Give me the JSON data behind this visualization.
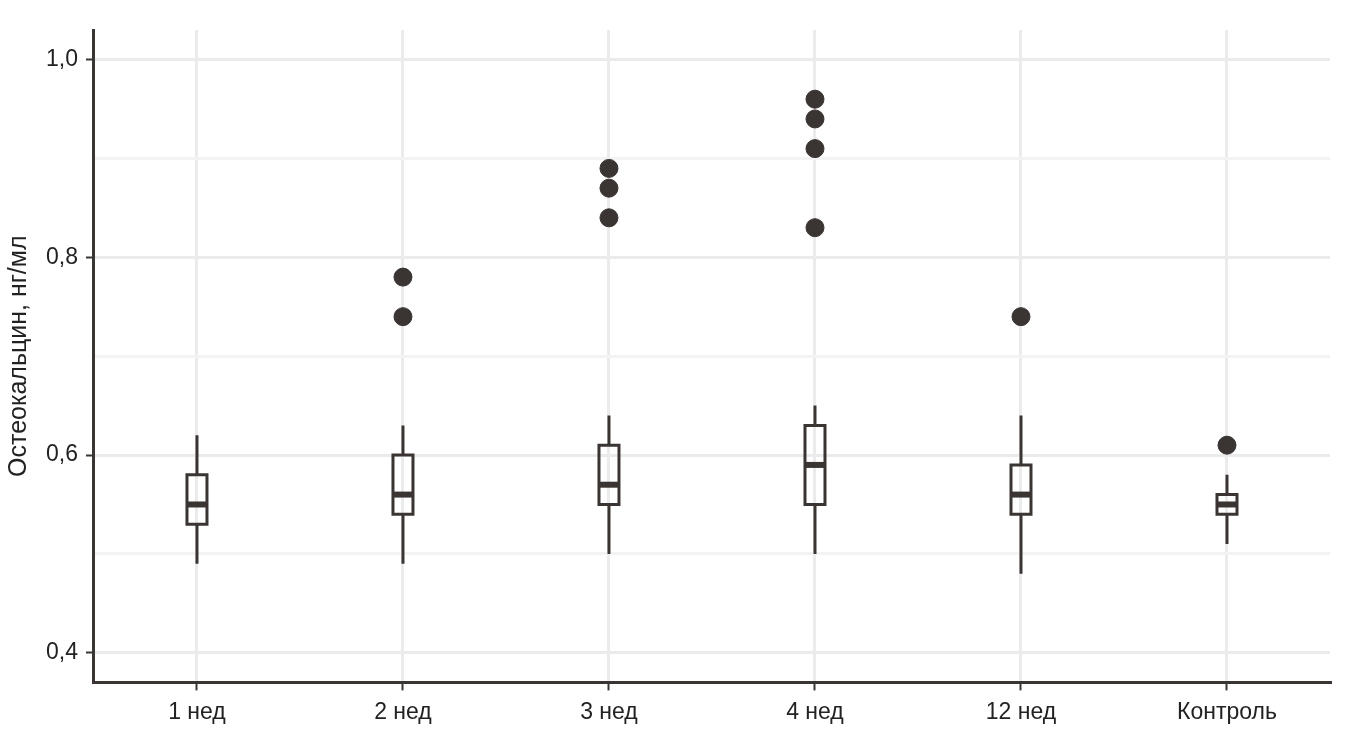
{
  "chart_data": {
    "type": "box",
    "ylabel": "Остеокальцин, нг/мл",
    "categories": [
      "1 нед",
      "2 нед",
      "3 нед",
      "4 нед",
      "12 нед",
      "Контроль"
    ],
    "color": "#3a3533",
    "boxes": [
      {
        "low": 0.49,
        "q1": 0.53,
        "median": 0.55,
        "q3": 0.58,
        "high": 0.62
      },
      {
        "low": 0.49,
        "q1": 0.54,
        "median": 0.56,
        "q3": 0.6,
        "high": 0.63,
        "outliers": [
          0.74,
          0.78
        ]
      },
      {
        "low": 0.5,
        "q1": 0.55,
        "median": 0.57,
        "q3": 0.61,
        "high": 0.64,
        "outliers": [
          0.84,
          0.87,
          0.89
        ]
      },
      {
        "low": 0.5,
        "q1": 0.55,
        "median": 0.59,
        "q3": 0.63,
        "high": 0.65,
        "outliers": [
          0.83,
          0.91,
          0.94,
          0.96
        ]
      },
      {
        "low": 0.48,
        "q1": 0.54,
        "median": 0.56,
        "q3": 0.59,
        "high": 0.64,
        "outliers": [
          0.74
        ]
      },
      {
        "low": 0.51,
        "q1": 0.54,
        "median": 0.55,
        "q3": 0.56,
        "high": 0.58,
        "outliers": [
          0.61
        ]
      }
    ],
    "ylim": [
      0.37,
      1.03
    ],
    "yticks": [
      {
        "value": 0.4,
        "label": "0,4"
      },
      {
        "value": 0.5,
        "label": null
      },
      {
        "value": 0.6,
        "label": "0,6"
      },
      {
        "value": 0.7,
        "label": null
      },
      {
        "value": 0.8,
        "label": "0,8"
      },
      {
        "value": 0.9,
        "label": null
      },
      {
        "value": 1.0,
        "label": "1,0"
      }
    ],
    "grid": true
  }
}
